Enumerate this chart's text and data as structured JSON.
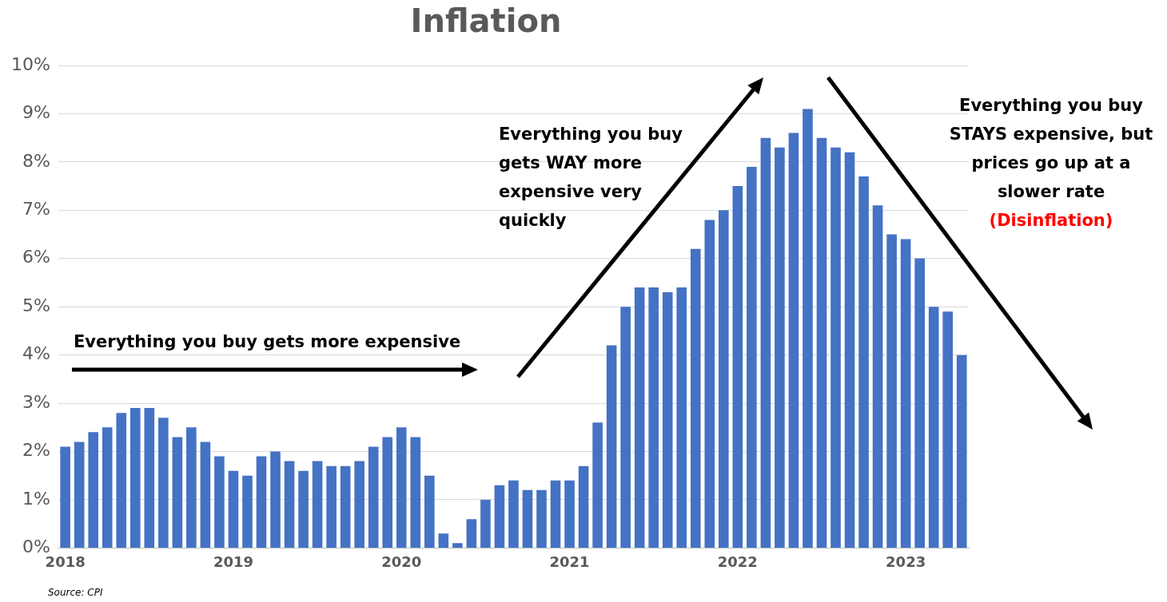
{
  "chart_data": {
    "type": "bar",
    "title": "Inflation",
    "categories": [
      "2018",
      null,
      null,
      null,
      null,
      null,
      null,
      null,
      null,
      null,
      null,
      null,
      "2019",
      null,
      null,
      null,
      null,
      null,
      null,
      null,
      null,
      null,
      null,
      null,
      "2020",
      null,
      null,
      null,
      null,
      null,
      null,
      null,
      null,
      null,
      null,
      null,
      "2021",
      null,
      null,
      null,
      null,
      null,
      null,
      null,
      null,
      null,
      null,
      null,
      "2022",
      null,
      null,
      null,
      null,
      null,
      null,
      null,
      null,
      null,
      null,
      null,
      "2023",
      null,
      null,
      null,
      null
    ],
    "values": [
      2.1,
      2.2,
      2.4,
      2.5,
      2.8,
      2.9,
      2.9,
      2.7,
      2.3,
      2.5,
      2.2,
      1.9,
      1.6,
      1.5,
      1.9,
      2.0,
      1.8,
      1.6,
      1.8,
      1.7,
      1.7,
      1.8,
      2.1,
      2.3,
      2.5,
      2.3,
      1.5,
      0.3,
      0.1,
      0.6,
      1.0,
      1.3,
      1.4,
      1.2,
      1.2,
      1.4,
      1.4,
      1.7,
      2.6,
      4.2,
      5.0,
      5.4,
      5.4,
      5.3,
      5.4,
      6.2,
      6.8,
      7.0,
      7.5,
      7.9,
      8.5,
      8.3,
      8.6,
      9.1,
      8.5,
      8.3,
      8.2,
      7.7,
      7.1,
      6.5,
      6.4,
      6.0,
      5.0,
      4.9,
      4.0
    ],
    "color": "#4472c4",
    "ylim": [
      0,
      10
    ],
    "yticks": [
      {
        "value": 0,
        "label": "0%"
      },
      {
        "value": 1,
        "label": "1%"
      },
      {
        "value": 2,
        "label": "2%"
      },
      {
        "value": 3,
        "label": "3%"
      },
      {
        "value": 4,
        "label": "4%"
      },
      {
        "value": 5,
        "label": "5%"
      },
      {
        "value": 6,
        "label": "6%"
      },
      {
        "value": 7,
        "label": "7%"
      },
      {
        "value": 8,
        "label": "8%"
      },
      {
        "value": 9,
        "label": "9%"
      },
      {
        "value": 10,
        "label": "10%"
      }
    ],
    "grid": "y",
    "annotations": [
      "Everything you buy gets more expensive",
      "Everything you buy gets WAY more expensive very quickly",
      "Everything you buy STAYS expensive, but prices go up at a slower rate",
      "(Disinflation)",
      "Source: CPI"
    ]
  }
}
